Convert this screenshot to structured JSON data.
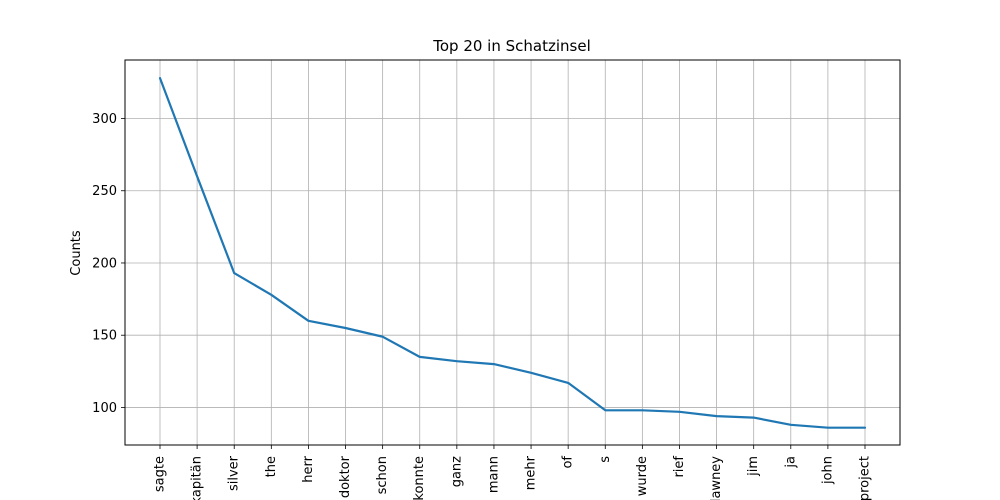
{
  "chart_data": {
    "type": "line",
    "title": "Top 20 in Schatzinsel",
    "xlabel": "",
    "ylabel": "Counts",
    "categories": [
      "sagte",
      "kapitän",
      "silver",
      "the",
      "herr",
      "doktor",
      "schon",
      "konnte",
      "ganz",
      "mann",
      "mehr",
      "of",
      "s",
      "wurde",
      "rief",
      "trelawney",
      "jim",
      "ja",
      "john",
      "project"
    ],
    "values": [
      328,
      260,
      193,
      178,
      160,
      155,
      149,
      135,
      132,
      130,
      124,
      117,
      98,
      98,
      97,
      94,
      93,
      88,
      86,
      86
    ],
    "yticks": [
      100,
      150,
      200,
      250,
      300
    ],
    "ylim": [
      74,
      340.5
    ],
    "grid": true,
    "line_color": "#1f77b4"
  }
}
